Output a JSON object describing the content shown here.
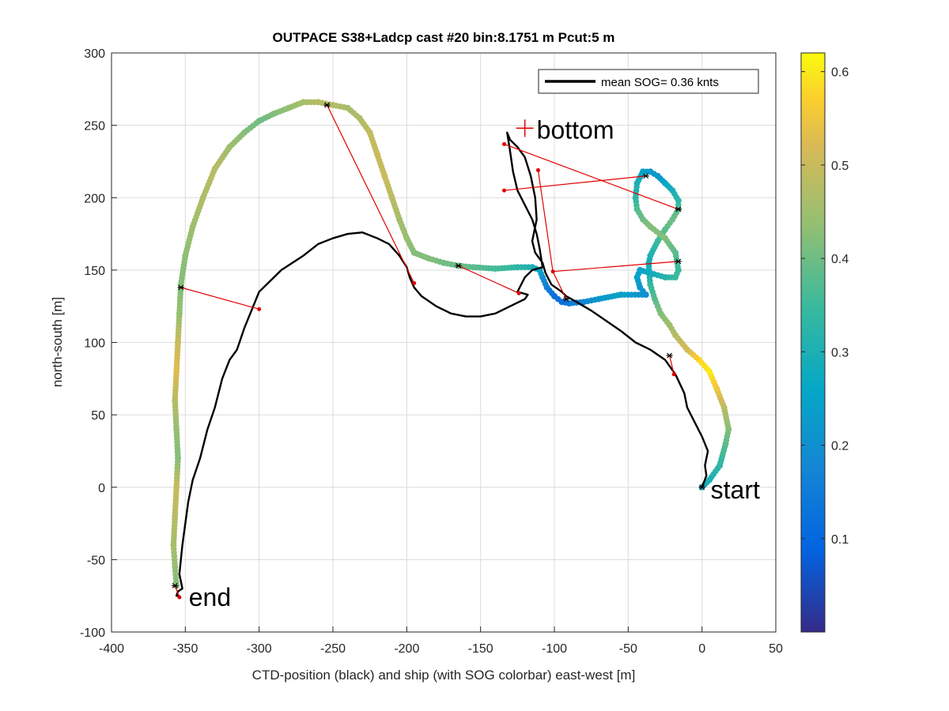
{
  "chart_data": {
    "type": "scatter",
    "title": "OUTPACE S38+Ladcp cast #20 bin:8.1751 m  Pcut:5 m",
    "xlabel": "CTD-position (black) and ship (with SOG colorbar) east-west [m]",
    "ylabel": "north-south [m]",
    "xlim": [
      -400,
      50
    ],
    "ylim": [
      -100,
      300
    ],
    "xticks": [
      -400,
      -350,
      -300,
      -250,
      -200,
      -150,
      -100,
      -50,
      0,
      50
    ],
    "yticks": [
      -100,
      -50,
      0,
      50,
      100,
      150,
      200,
      250,
      300
    ],
    "grid": true,
    "legend": {
      "placement": "top-right",
      "entries": [
        "mean SOG=  0.36 knts"
      ]
    },
    "colorbar": {
      "label": "",
      "range": [
        0,
        0.62
      ],
      "ticks": [
        0.1,
        0.2,
        0.3,
        0.4,
        0.5,
        0.6
      ],
      "colormap": "parula"
    },
    "annotations": [
      {
        "text": "bottom",
        "x": -120,
        "y": 248
      },
      {
        "text": "start",
        "x": 0,
        "y": 0
      },
      {
        "text": "end",
        "x": -353,
        "y": -75
      }
    ],
    "ship_track": {
      "name": "ship SOG",
      "x": [
        0,
        5,
        12,
        16,
        18,
        15,
        10,
        5,
        -2,
        -10,
        -18,
        -22,
        -28,
        -32,
        -35,
        -36,
        -36,
        -35,
        -30,
        -25,
        -20,
        -16,
        -16,
        -20,
        -25,
        -30,
        -35,
        -40,
        -44,
        -45,
        -44,
        -40,
        -35,
        -25,
        -18,
        -16,
        -18,
        -25,
        -35,
        -42,
        -44,
        -42,
        -38,
        -55,
        -70,
        -80,
        -90,
        -95,
        -100,
        -105,
        -108,
        -110,
        -115,
        -125,
        -140,
        -155,
        -165,
        -175,
        -185,
        -195,
        -200,
        -205,
        -210,
        -215,
        -220,
        -225,
        -232,
        -240,
        -250,
        -260,
        -270,
        -280,
        -290,
        -300,
        -310,
        -320,
        -330,
        -338,
        -345,
        -350,
        -353,
        -354,
        -355,
        -356,
        -357,
        -356,
        -355,
        -356,
        -357,
        -358,
        -357,
        -356
      ],
      "y": [
        0,
        5,
        15,
        30,
        40,
        55,
        68,
        80,
        88,
        95,
        105,
        112,
        120,
        130,
        140,
        150,
        155,
        160,
        170,
        178,
        185,
        192,
        198,
        205,
        210,
        215,
        218,
        218,
        210,
        200,
        192,
        185,
        180,
        172,
        162,
        150,
        145,
        145,
        148,
        150,
        145,
        138,
        133,
        133,
        130,
        128,
        127,
        128,
        132,
        138,
        145,
        150,
        152,
        152,
        151,
        152,
        153,
        155,
        158,
        162,
        172,
        185,
        200,
        215,
        230,
        245,
        255,
        262,
        264,
        266,
        266,
        262,
        258,
        253,
        245,
        235,
        220,
        200,
        180,
        160,
        140,
        120,
        100,
        80,
        60,
        40,
        20,
        0,
        -20,
        -40,
        -55,
        -68
      ],
      "sog": [
        0.28,
        0.3,
        0.33,
        0.38,
        0.42,
        0.48,
        0.55,
        0.6,
        0.58,
        0.52,
        0.48,
        0.45,
        0.42,
        0.38,
        0.34,
        0.3,
        0.28,
        0.3,
        0.35,
        0.38,
        0.4,
        0.38,
        0.33,
        0.3,
        0.26,
        0.22,
        0.22,
        0.25,
        0.3,
        0.33,
        0.37,
        0.4,
        0.42,
        0.42,
        0.38,
        0.35,
        0.35,
        0.32,
        0.28,
        0.25,
        0.25,
        0.22,
        0.2,
        0.25,
        0.22,
        0.18,
        0.15,
        0.12,
        0.12,
        0.15,
        0.2,
        0.25,
        0.3,
        0.33,
        0.36,
        0.38,
        0.4,
        0.4,
        0.42,
        0.42,
        0.44,
        0.46,
        0.48,
        0.5,
        0.5,
        0.49,
        0.47,
        0.46,
        0.47,
        0.48,
        0.46,
        0.44,
        0.42,
        0.4,
        0.42,
        0.45,
        0.48,
        0.47,
        0.45,
        0.43,
        0.42,
        0.44,
        0.5,
        0.53,
        0.48,
        0.44,
        0.42,
        0.5,
        0.48,
        0.46,
        0.44,
        0.42
      ]
    },
    "ctd_track": {
      "name": "CTD-position",
      "x": [
        0,
        3,
        2,
        4,
        0,
        -5,
        -10,
        -12,
        -18,
        -25,
        -35,
        -45,
        -55,
        -65,
        -75,
        -85,
        -92,
        -95,
        -102,
        -106,
        -108,
        -113,
        -115,
        -112,
        -113,
        -116,
        -120,
        -125,
        -130,
        -132,
        -130,
        -128,
        -125,
        -120,
        -115,
        -112,
        -110,
        -108,
        -115,
        -120,
        -125,
        -118,
        -120,
        -130,
        -140,
        -150,
        -160,
        -170,
        -180,
        -190,
        -195,
        -198,
        -200,
        -205,
        -212,
        -220,
        -230,
        -240,
        -250,
        -260,
        -270,
        -285,
        -300,
        -310,
        -315,
        -320,
        -325,
        -330,
        -335,
        -340,
        -345,
        -348,
        -350,
        -352,
        -353,
        -354,
        -353,
        -352,
        -355,
        -356,
        -354
      ],
      "y": [
        0,
        8,
        15,
        25,
        35,
        45,
        55,
        65,
        78,
        88,
        95,
        100,
        108,
        115,
        122,
        128,
        132,
        135,
        140,
        148,
        155,
        162,
        170,
        185,
        200,
        215,
        228,
        235,
        240,
        245,
        232,
        218,
        205,
        195,
        185,
        175,
        165,
        152,
        150,
        145,
        135,
        133,
        130,
        125,
        120,
        118,
        118,
        120,
        125,
        132,
        138,
        145,
        152,
        160,
        168,
        172,
        176,
        175,
        172,
        168,
        160,
        150,
        135,
        110,
        95,
        88,
        75,
        55,
        40,
        20,
        5,
        -10,
        -25,
        -40,
        -50,
        -60,
        -65,
        -70,
        -72,
        -75,
        -75
      ]
    },
    "segments": [
      [
        [
          -22,
          91
        ],
        [
          -19,
          78
        ]
      ],
      [
        [
          -16,
          156
        ],
        [
          -101,
          149
        ]
      ],
      [
        [
          -101,
          149
        ],
        [
          -111,
          219
        ]
      ],
      [
        [
          -92,
          130
        ],
        [
          -101,
          149
        ]
      ],
      [
        [
          -134,
          237
        ],
        [
          -16,
          192
        ]
      ],
      [
        [
          -134,
          205
        ],
        [
          -38,
          215
        ]
      ],
      [
        [
          -165,
          153
        ],
        [
          -124,
          134
        ]
      ],
      [
        [
          -254,
          264
        ],
        [
          -195,
          141
        ]
      ],
      [
        [
          -353,
          138
        ],
        [
          -300,
          123
        ]
      ],
      [
        [
          -357,
          -68
        ],
        [
          -354,
          -76
        ]
      ]
    ],
    "ship_markers": [
      [
        -254,
        264
      ],
      [
        -165,
        153
      ],
      [
        -38,
        215
      ],
      [
        -16,
        192
      ],
      [
        -16,
        156
      ],
      [
        -92,
        130
      ],
      [
        -22,
        91
      ],
      [
        -353,
        138
      ],
      [
        -357,
        -68
      ],
      [
        0,
        0
      ]
    ],
    "ctd_markers": [
      [
        -300,
        123
      ],
      [
        -195,
        141
      ],
      [
        -124,
        134
      ],
      [
        -101,
        149
      ],
      [
        -111,
        219
      ],
      [
        -134,
        237
      ],
      [
        -134,
        205
      ],
      [
        -19,
        78
      ],
      [
        -354,
        -76
      ]
    ],
    "bottom_marker": [
      -120,
      248
    ]
  }
}
